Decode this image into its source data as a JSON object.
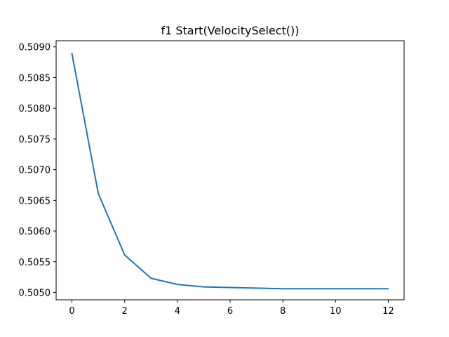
{
  "chart_data": {
    "type": "line",
    "title": "f1 Start(VelocitySelect())",
    "xlabel": "",
    "ylabel": "",
    "xlim": [
      -0.6,
      12.6
    ],
    "ylim": [
      0.50488,
      0.5091
    ],
    "xticks": [
      0,
      2,
      4,
      6,
      8,
      10,
      12
    ],
    "xtick_labels": [
      "0",
      "2",
      "4",
      "6",
      "8",
      "10",
      "12"
    ],
    "yticks": [
      0.505,
      0.5055,
      0.506,
      0.5065,
      0.507,
      0.5075,
      0.508,
      0.5085,
      0.509
    ],
    "ytick_labels": [
      "0.5050",
      "0.5055",
      "0.5060",
      "0.5065",
      "0.5070",
      "0.5075",
      "0.5080",
      "0.5085",
      "0.5090"
    ],
    "grid": false,
    "series": [
      {
        "color": "#1f77b4",
        "x": [
          0,
          1,
          2,
          3,
          4,
          5,
          6,
          7,
          8,
          9,
          10,
          11,
          12
        ],
        "y": [
          0.50889,
          0.50661,
          0.50561,
          0.50523,
          0.50513,
          0.50509,
          0.50508,
          0.50507,
          0.50506,
          0.50506,
          0.50506,
          0.50506,
          0.50506
        ]
      }
    ]
  }
}
